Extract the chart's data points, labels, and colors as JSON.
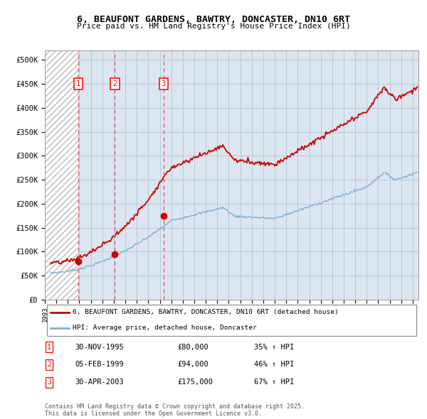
{
  "title": "6, BEAUFONT GARDENS, BAWTRY, DONCASTER, DN10 6RT",
  "subtitle": "Price paid vs. HM Land Registry's House Price Index (HPI)",
  "legend_line1": "6, BEAUFONT GARDENS, BAWTRY, DONCASTER, DN10 6RT (detached house)",
  "legend_line2": "HPI: Average price, detached house, Doncaster",
  "footer": "Contains HM Land Registry data © Crown copyright and database right 2025.\nThis data is licensed under the Open Government Licence v3.0.",
  "sale_points": [
    {
      "label": "1",
      "date_str": "30-NOV-1995",
      "date_x": 1995.92,
      "price": 80000,
      "hpi_pct": "35% ↑ HPI"
    },
    {
      "label": "2",
      "date_str": "05-FEB-1999",
      "date_x": 1999.09,
      "price": 94000,
      "hpi_pct": "46% ↑ HPI"
    },
    {
      "label": "3",
      "date_str": "30-APR-2003",
      "date_x": 2003.33,
      "price": 175000,
      "hpi_pct": "67% ↑ HPI"
    }
  ],
  "ylim": [
    0,
    520000
  ],
  "xlim_start": 1993.0,
  "xlim_end": 2025.5,
  "yticks": [
    0,
    50000,
    100000,
    150000,
    200000,
    250000,
    300000,
    350000,
    400000,
    450000,
    500000
  ],
  "ytick_labels": [
    "£0",
    "£50K",
    "£100K",
    "£150K",
    "£200K",
    "£250K",
    "£300K",
    "£350K",
    "£400K",
    "£450K",
    "£500K"
  ],
  "red_color": "#cc0000",
  "blue_color": "#7bafd4",
  "bg_color": "#dce6f0",
  "grid_color": "#b8c8d8",
  "dashed_line_color": "#dd6666"
}
